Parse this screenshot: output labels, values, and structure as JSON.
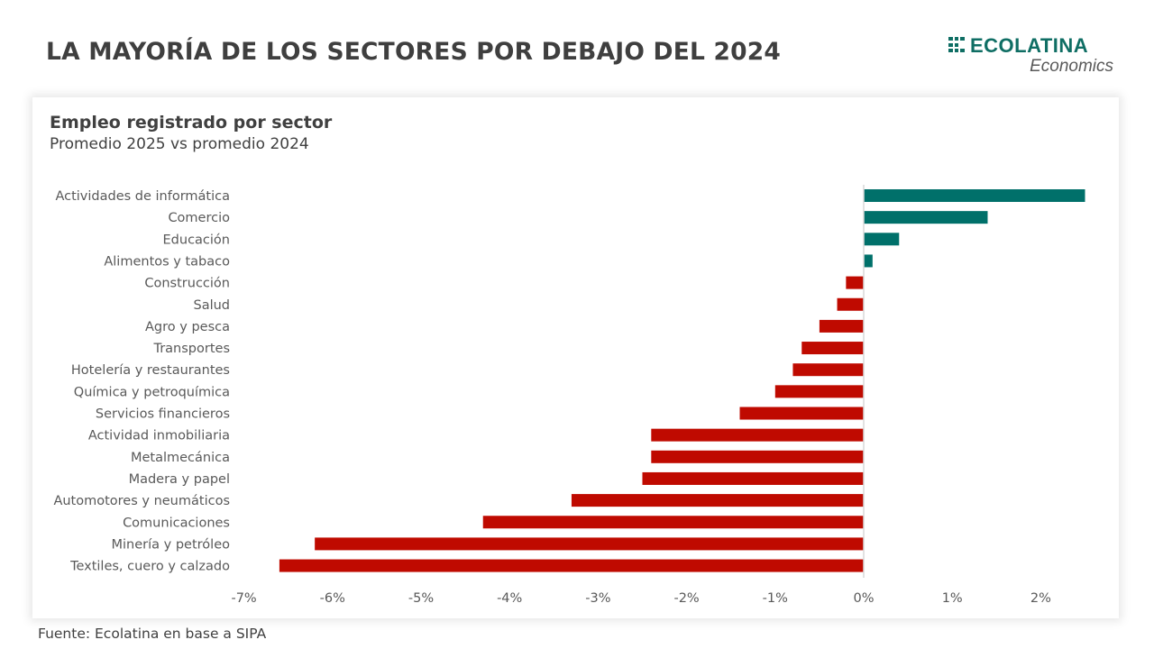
{
  "header": {
    "title": "LA MAYORÍA DE LOS SECTORES POR DEBAJO DEL 2024"
  },
  "logo": {
    "icon": "grid-squares-icon",
    "name": "ECOLATINA",
    "subtitle": "Economics",
    "color": "#0f6e64"
  },
  "source": "Fuente: Ecolatina en base a SIPA",
  "colors": {
    "positive": "#00706a",
    "negative": "#bf0a00",
    "axis": "#d9d9d9"
  },
  "chart_data": {
    "type": "bar",
    "orientation": "horizontal",
    "title": "Empleo registrado por sector",
    "subtitle": "Promedio 2025 vs promedio 2024",
    "xlabel": "",
    "ylabel": "",
    "xlim": [
      -7,
      2.6
    ],
    "x_ticks": [
      -7,
      -6,
      -5,
      -4,
      -3,
      -2,
      -1,
      0,
      1,
      2
    ],
    "x_tick_labels": [
      "-7%",
      "-6%",
      "-5%",
      "-4%",
      "-3%",
      "-2%",
      "-1%",
      "0%",
      "1%",
      "2%"
    ],
    "unit": "%",
    "grid": false,
    "legend": "none",
    "categories": [
      "Actividades de informática",
      "Comercio",
      "Educación",
      "Alimentos y tabaco",
      "Construcción",
      "Salud",
      "Agro y pesca",
      "Transportes",
      "Hotelería y restaurantes",
      "Química y petroquímica",
      "Servicios financieros",
      "Actividad inmobiliaria",
      "Metalmecánica",
      "Madera y papel",
      "Automotores y neumáticos",
      "Comunicaciones",
      "Minería y petróleo",
      "Textiles, cuero y calzado"
    ],
    "values": [
      2.5,
      1.4,
      0.4,
      0.1,
      -0.2,
      -0.3,
      -0.5,
      -0.7,
      -0.8,
      -1.0,
      -1.4,
      -2.4,
      -2.4,
      -2.5,
      -3.3,
      -4.3,
      -6.2,
      -6.6
    ]
  }
}
